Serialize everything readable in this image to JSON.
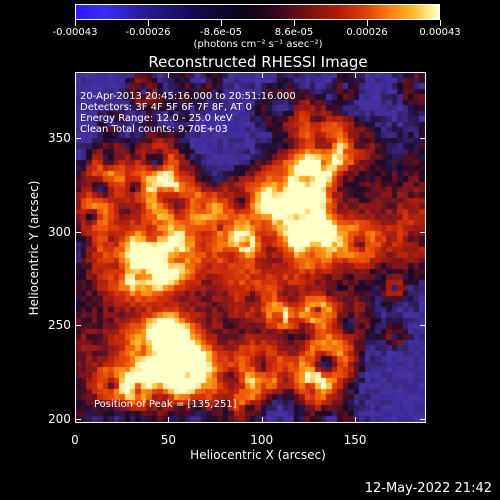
{
  "colorbar": {
    "tick_labels": [
      "-0.00043",
      "-0.00026",
      "-8.6e-05",
      "8.6e-05",
      "0.00026",
      "0.00043"
    ],
    "units_label": "(photons cm⁻² s⁻¹ asec⁻²)"
  },
  "title": "Reconstructed RHESSI Image",
  "info_lines": [
    "20-Apr-2013 20:45:16.000 to 20:51:16.000",
    "Detectors: 3F 4F 5F 6F 7F 8F, AT 0",
    "Energy Range: 12.0 - 25.0 keV",
    "Clean      Total counts: 9.70E+03"
  ],
  "peak_label": "Position of Peak = [135,251]",
  "x_axis": {
    "label": "Heliocentric X (arcsec)",
    "ticks": [
      "0",
      "50",
      "100",
      "150"
    ]
  },
  "y_axis": {
    "label": "Heliocentric Y (arcsec)",
    "ticks": [
      "350",
      "300",
      "250",
      "200"
    ]
  },
  "timestamp": "12-May-2022 21:42",
  "chart_data": {
    "type": "heatmap",
    "title": "Reconstructed RHESSI Image",
    "xlabel": "Heliocentric X (arcsec)",
    "ylabel": "Heliocentric Y (arcsec)",
    "xlim": [
      0,
      188
    ],
    "ylim": [
      198,
      385
    ],
    "colorbar_range": [
      -0.00043,
      0.00043
    ],
    "peak_position": [
      135,
      251
    ],
    "colormap": [
      "#2a1cff",
      "#150a55",
      "#0a0418",
      "#7a1010",
      "#e04008",
      "#ffb020",
      "#ffffe0"
    ]
  }
}
